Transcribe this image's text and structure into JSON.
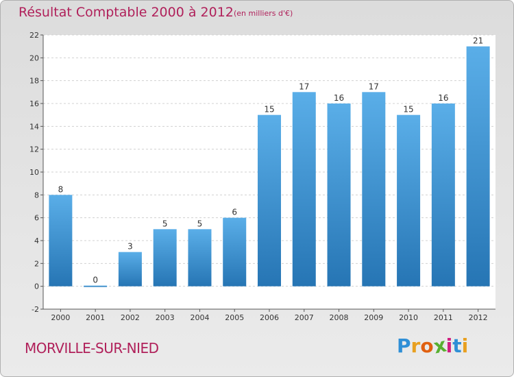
{
  "chart_data": {
    "type": "bar",
    "title": "Résultat Comptable 2000 à 2012",
    "subtitle": "(en milliers d'€)",
    "categories": [
      "2000",
      "2001",
      "2002",
      "2003",
      "2004",
      "2005",
      "2006",
      "2007",
      "2008",
      "2009",
      "2010",
      "2011",
      "2012"
    ],
    "values": [
      8,
      0,
      3,
      5,
      5,
      6,
      15,
      17,
      16,
      17,
      15,
      16,
      21
    ],
    "ylim": [
      -2,
      22
    ],
    "yticks": [
      -2,
      0,
      2,
      4,
      6,
      8,
      10,
      12,
      14,
      16,
      18,
      20,
      22
    ],
    "xlabel": "",
    "ylabel": "",
    "grid": true,
    "bar_color_light": "#5aaee8",
    "bar_color_dark": "#2675b4",
    "title_color": "#b0205a"
  },
  "footer": {
    "town": "MORVILLE-SUR-NIED",
    "logo_letters": [
      "P",
      "r",
      "o",
      "x",
      "i",
      "t",
      "i"
    ],
    "logo_colors": [
      "#2f8fd6",
      "#e8a020",
      "#e06010",
      "#58b030",
      "#d02080",
      "#2f8fd6",
      "#e8a020"
    ]
  }
}
